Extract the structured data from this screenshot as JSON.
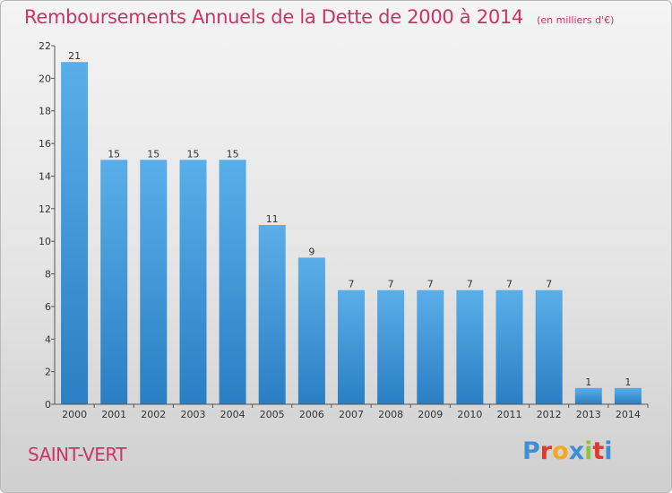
{
  "chart_data": {
    "type": "bar",
    "title": "Remboursements Annuels de la Dette de 2000 à 2014",
    "subtitle": "(en milliers d'€)",
    "categories": [
      "2000",
      "2001",
      "2002",
      "2003",
      "2004",
      "2005",
      "2006",
      "2007",
      "2008",
      "2009",
      "2010",
      "2011",
      "2012",
      "2013",
      "2014"
    ],
    "values": [
      21,
      15,
      15,
      15,
      15,
      11,
      9,
      7,
      7,
      7,
      7,
      7,
      7,
      1,
      1
    ],
    "ylim": [
      0,
      22
    ],
    "yticks": [
      0,
      2,
      4,
      6,
      8,
      10,
      12,
      14,
      16,
      18,
      20,
      22
    ],
    "xlabel": "",
    "ylabel": "",
    "grid": false,
    "bar_color": "#3b93d6"
  },
  "footer": {
    "commune": "SAINT-VERT",
    "brand": "Proxiti",
    "brand_colors": [
      "#3d8fd6",
      "#e2382b",
      "#f5a623",
      "#3d8fd6",
      "#8cc63f",
      "#e2382b",
      "#3d8fd6"
    ]
  },
  "colors": {
    "title": "#cc3366",
    "axis": "#555555"
  }
}
